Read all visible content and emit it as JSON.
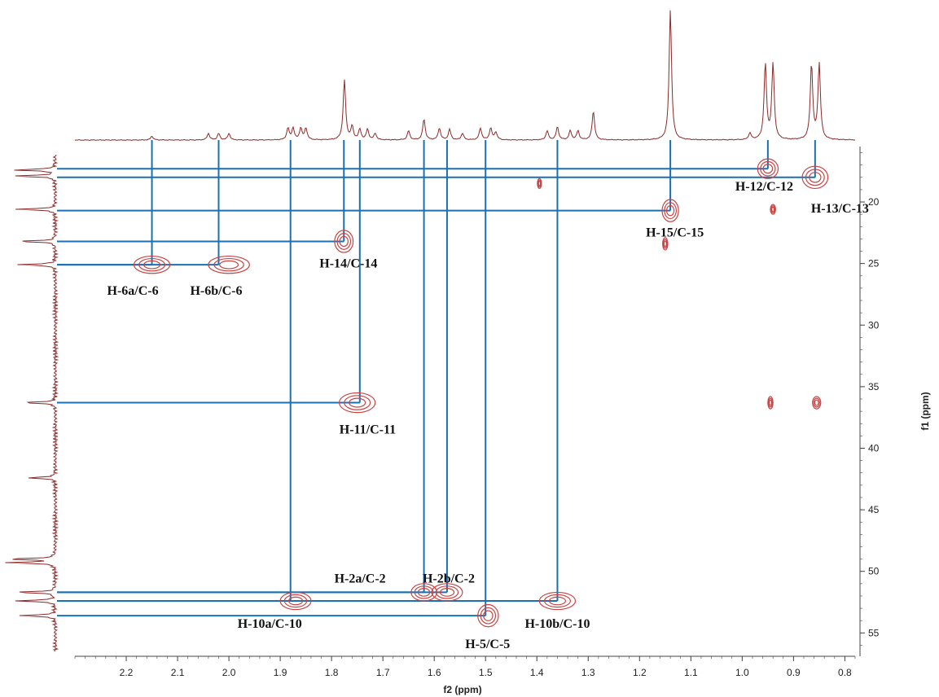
{
  "chart_data": {
    "type": "2D NMR HSQC contour plot",
    "xlabel": "f2 (ppm)",
    "ylabel": "f1 (ppm)",
    "xlim": [
      2.3,
      0.78
    ],
    "ylim": [
      15.5,
      56.5
    ],
    "x_ticks": [
      "2.2",
      "2.1",
      "2.0",
      "1.9",
      "1.8",
      "1.7",
      "1.6",
      "1.5",
      "1.4",
      "1.3",
      "1.2",
      "1.1",
      "1.0",
      "0.9",
      "0.8"
    ],
    "y_ticks": [
      "20",
      "25",
      "30",
      "35",
      "40",
      "45",
      "50",
      "55"
    ],
    "colors": {
      "spectrum": "#8b2a2a",
      "contour": "#cc4444",
      "correlation_line": "#1a70b5",
      "axis": "#444444"
    },
    "proton_spectrum_peaks": [
      {
        "x": 2.15,
        "h": 0.03
      },
      {
        "x": 2.04,
        "h": 0.05
      },
      {
        "x": 2.02,
        "h": 0.05
      },
      {
        "x": 2.0,
        "h": 0.05
      },
      {
        "x": 1.885,
        "h": 0.09
      },
      {
        "x": 1.875,
        "h": 0.09
      },
      {
        "x": 1.86,
        "h": 0.09
      },
      {
        "x": 1.85,
        "h": 0.09
      },
      {
        "x": 1.775,
        "h": 0.46
      },
      {
        "x": 1.76,
        "h": 0.1
      },
      {
        "x": 1.745,
        "h": 0.08
      },
      {
        "x": 1.73,
        "h": 0.08
      },
      {
        "x": 1.715,
        "h": 0.05
      },
      {
        "x": 1.65,
        "h": 0.07
      },
      {
        "x": 1.62,
        "h": 0.16
      },
      {
        "x": 1.59,
        "h": 0.09
      },
      {
        "x": 1.57,
        "h": 0.08
      },
      {
        "x": 1.545,
        "h": 0.05
      },
      {
        "x": 1.51,
        "h": 0.09
      },
      {
        "x": 1.49,
        "h": 0.09
      },
      {
        "x": 1.48,
        "h": 0.06
      },
      {
        "x": 1.38,
        "h": 0.07
      },
      {
        "x": 1.36,
        "h": 0.1
      },
      {
        "x": 1.335,
        "h": 0.07
      },
      {
        "x": 1.32,
        "h": 0.07
      },
      {
        "x": 1.29,
        "h": 0.22
      },
      {
        "x": 1.14,
        "h": 1.0
      },
      {
        "x": 0.985,
        "h": 0.05
      },
      {
        "x": 0.955,
        "h": 0.58
      },
      {
        "x": 0.94,
        "h": 0.58
      },
      {
        "x": 0.865,
        "h": 0.58
      },
      {
        "x": 0.85,
        "h": 0.58
      }
    ],
    "carbon_spectrum_peaks": [
      {
        "y": 17.4,
        "h": 0.9
      },
      {
        "y": 17.9,
        "h": 0.9
      },
      {
        "y": 20.6,
        "h": 0.85
      },
      {
        "y": 23.2,
        "h": 0.8
      },
      {
        "y": 25.1,
        "h": 0.8
      },
      {
        "y": 36.3,
        "h": 0.7
      },
      {
        "y": 42.4,
        "h": 0.6
      },
      {
        "y": 49.0,
        "h": 1.0
      },
      {
        "y": 49.3,
        "h": 1.0
      },
      {
        "y": 51.7,
        "h": 0.85
      },
      {
        "y": 52.4,
        "h": 0.85
      },
      {
        "y": 53.6,
        "h": 0.8
      }
    ],
    "cross_peaks": [
      {
        "x": 0.95,
        "y": 17.3,
        "w": 0.02,
        "hgt": 0.8
      },
      {
        "x": 0.858,
        "y": 18.0,
        "w": 0.025,
        "hgt": 0.9
      },
      {
        "x": 1.14,
        "y": 20.7,
        "w": 0.016,
        "hgt": 0.9
      },
      {
        "x": 1.776,
        "y": 23.2,
        "w": 0.018,
        "hgt": 0.9
      },
      {
        "x": 2.15,
        "y": 25.1,
        "w": 0.035,
        "hgt": 0.7
      },
      {
        "x": 2.0,
        "y": 25.1,
        "w": 0.04,
        "hgt": 0.7
      },
      {
        "x": 1.75,
        "y": 36.3,
        "w": 0.035,
        "hgt": 0.8
      },
      {
        "x": 1.62,
        "y": 51.7,
        "w": 0.025,
        "hgt": 0.7
      },
      {
        "x": 1.575,
        "y": 51.7,
        "w": 0.03,
        "hgt": 0.7
      },
      {
        "x": 1.87,
        "y": 52.4,
        "w": 0.03,
        "hgt": 0.7
      },
      {
        "x": 1.36,
        "y": 52.4,
        "w": 0.035,
        "hgt": 0.7
      },
      {
        "x": 1.495,
        "y": 53.6,
        "w": 0.02,
        "hgt": 0.9
      },
      {
        "x": 1.395,
        "y": 18.5,
        "w": 0.004,
        "hgt": 0.4
      },
      {
        "x": 0.94,
        "y": 20.6,
        "w": 0.005,
        "hgt": 0.4
      },
      {
        "x": 1.15,
        "y": 23.4,
        "w": 0.005,
        "hgt": 0.5
      },
      {
        "x": 0.945,
        "y": 36.3,
        "w": 0.005,
        "hgt": 0.5
      },
      {
        "x": 0.855,
        "y": 36.3,
        "w": 0.008,
        "hgt": 0.5
      }
    ],
    "assignments": [
      {
        "label": "H-12/C-12",
        "x": 0.95,
        "y": 17.3
      },
      {
        "label": "H-13/C-13",
        "x": 0.858,
        "y": 18.0
      },
      {
        "label": "H-15/C-15",
        "x": 1.14,
        "y": 20.7
      },
      {
        "label": "H-14/C-14",
        "x": 1.776,
        "y": 23.2
      },
      {
        "label": "H-6a/C-6",
        "x": 2.15,
        "y": 25.1
      },
      {
        "label": "H-6b/C-6",
        "x": 2.02,
        "y": 25.1
      },
      {
        "label": "H-11/C-11",
        "x": 1.745,
        "y": 36.3
      },
      {
        "label": "H-2a/C-2",
        "x": 1.62,
        "y": 51.7
      },
      {
        "label": "H-2b/C-2",
        "x": 1.575,
        "y": 51.7
      },
      {
        "label": "H-10a/C-10",
        "x": 1.88,
        "y": 52.4
      },
      {
        "label": "H-10b/C-10",
        "x": 1.36,
        "y": 52.4
      },
      {
        "label": "H-5/C-5",
        "x": 1.5,
        "y": 53.6
      }
    ]
  }
}
